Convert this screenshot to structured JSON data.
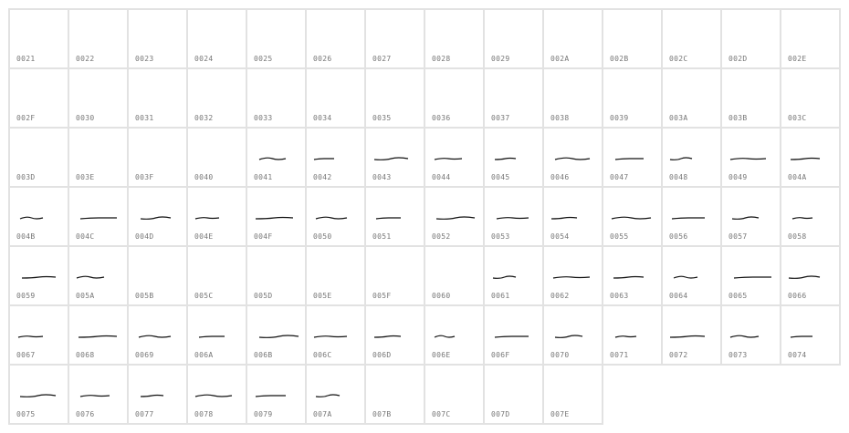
{
  "glyph_grid": {
    "stroke_color": "#111111",
    "border_color": "#e2e2e2",
    "label_color": "#777777",
    "cells": [
      {
        "code": "0021",
        "glyph": false
      },
      {
        "code": "0022",
        "glyph": false
      },
      {
        "code": "0023",
        "glyph": false
      },
      {
        "code": "0024",
        "glyph": false
      },
      {
        "code": "0025",
        "glyph": false
      },
      {
        "code": "0026",
        "glyph": false
      },
      {
        "code": "0027",
        "glyph": false
      },
      {
        "code": "0028",
        "glyph": false
      },
      {
        "code": "0029",
        "glyph": false
      },
      {
        "code": "002A",
        "glyph": false
      },
      {
        "code": "002B",
        "glyph": false
      },
      {
        "code": "002C",
        "glyph": false
      },
      {
        "code": "002D",
        "glyph": false
      },
      {
        "code": "002E",
        "glyph": false
      },
      {
        "code": "002F",
        "glyph": false
      },
      {
        "code": "0030",
        "glyph": false
      },
      {
        "code": "0031",
        "glyph": false
      },
      {
        "code": "0032",
        "glyph": false
      },
      {
        "code": "0033",
        "glyph": false
      },
      {
        "code": "0034",
        "glyph": false
      },
      {
        "code": "0035",
        "glyph": false
      },
      {
        "code": "0036",
        "glyph": false
      },
      {
        "code": "0037",
        "glyph": false
      },
      {
        "code": "0038",
        "glyph": false
      },
      {
        "code": "0039",
        "glyph": false
      },
      {
        "code": "003A",
        "glyph": false
      },
      {
        "code": "003B",
        "glyph": false
      },
      {
        "code": "003C",
        "glyph": false
      },
      {
        "code": "003D",
        "glyph": false
      },
      {
        "code": "003E",
        "glyph": false
      },
      {
        "code": "003F",
        "glyph": false
      },
      {
        "code": "0040",
        "glyph": false
      },
      {
        "code": "0041",
        "glyph": true
      },
      {
        "code": "0042",
        "glyph": true
      },
      {
        "code": "0043",
        "glyph": true
      },
      {
        "code": "0044",
        "glyph": true
      },
      {
        "code": "0045",
        "glyph": true
      },
      {
        "code": "0046",
        "glyph": true
      },
      {
        "code": "0047",
        "glyph": true
      },
      {
        "code": "0048",
        "glyph": true
      },
      {
        "code": "0049",
        "glyph": true
      },
      {
        "code": "004A",
        "glyph": true
      },
      {
        "code": "004B",
        "glyph": true
      },
      {
        "code": "004C",
        "glyph": true
      },
      {
        "code": "004D",
        "glyph": true
      },
      {
        "code": "004E",
        "glyph": true
      },
      {
        "code": "004F",
        "glyph": true
      },
      {
        "code": "0050",
        "glyph": true
      },
      {
        "code": "0051",
        "glyph": true
      },
      {
        "code": "0052",
        "glyph": true
      },
      {
        "code": "0053",
        "glyph": true
      },
      {
        "code": "0054",
        "glyph": true
      },
      {
        "code": "0055",
        "glyph": true
      },
      {
        "code": "0056",
        "glyph": true
      },
      {
        "code": "0057",
        "glyph": true
      },
      {
        "code": "0058",
        "glyph": true
      },
      {
        "code": "0059",
        "glyph": true
      },
      {
        "code": "005A",
        "glyph": true
      },
      {
        "code": "005B",
        "glyph": false
      },
      {
        "code": "005C",
        "glyph": false
      },
      {
        "code": "005D",
        "glyph": false
      },
      {
        "code": "005E",
        "glyph": false
      },
      {
        "code": "005F",
        "glyph": false
      },
      {
        "code": "0060",
        "glyph": false
      },
      {
        "code": "0061",
        "glyph": true
      },
      {
        "code": "0062",
        "glyph": true
      },
      {
        "code": "0063",
        "glyph": true
      },
      {
        "code": "0064",
        "glyph": true
      },
      {
        "code": "0065",
        "glyph": true
      },
      {
        "code": "0066",
        "glyph": true
      },
      {
        "code": "0067",
        "glyph": true
      },
      {
        "code": "0068",
        "glyph": true
      },
      {
        "code": "0069",
        "glyph": true
      },
      {
        "code": "006A",
        "glyph": true
      },
      {
        "code": "006B",
        "glyph": true
      },
      {
        "code": "006C",
        "glyph": true
      },
      {
        "code": "006D",
        "glyph": true
      },
      {
        "code": "006E",
        "glyph": true
      },
      {
        "code": "006F",
        "glyph": true
      },
      {
        "code": "0070",
        "glyph": true
      },
      {
        "code": "0071",
        "glyph": true
      },
      {
        "code": "0072",
        "glyph": true
      },
      {
        "code": "0073",
        "glyph": true
      },
      {
        "code": "0074",
        "glyph": true
      },
      {
        "code": "0075",
        "glyph": true
      },
      {
        "code": "0076",
        "glyph": true
      },
      {
        "code": "0077",
        "glyph": true
      },
      {
        "code": "0078",
        "glyph": true
      },
      {
        "code": "0079",
        "glyph": true
      },
      {
        "code": "007A",
        "glyph": true
      },
      {
        "code": "007B",
        "glyph": false
      },
      {
        "code": "007C",
        "glyph": false
      },
      {
        "code": "007D",
        "glyph": false
      },
      {
        "code": "007E",
        "glyph": false
      }
    ]
  }
}
